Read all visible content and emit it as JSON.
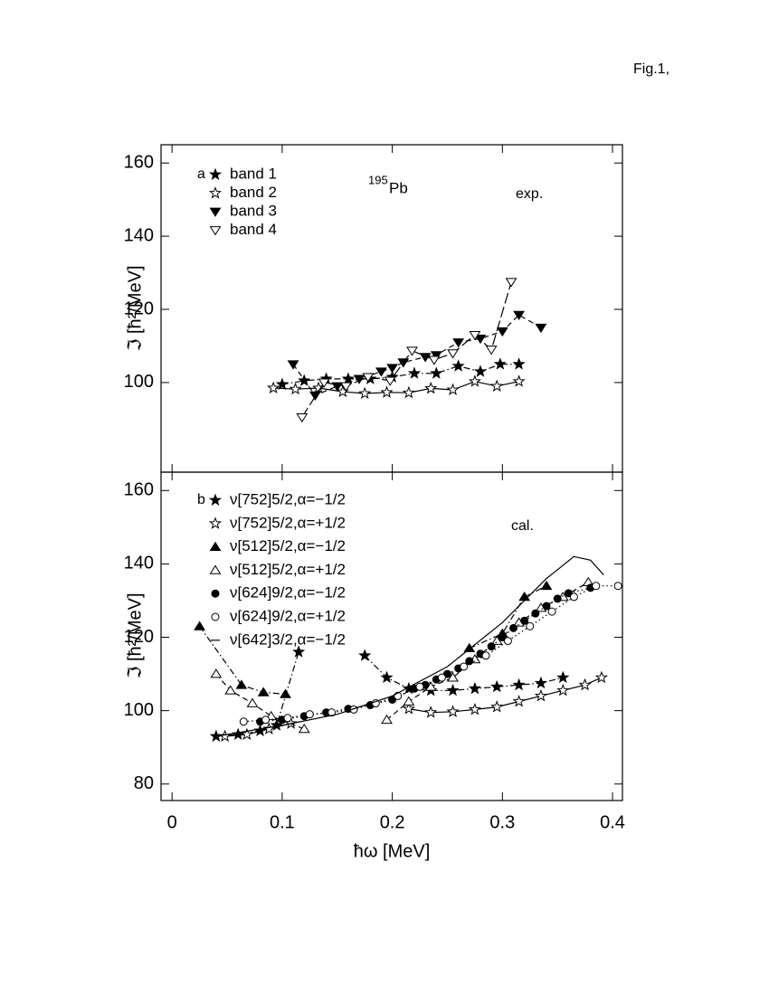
{
  "figure_label": "Fig.1,",
  "chart_data": [
    {
      "type": "line",
      "panel_label": "a",
      "annotation": "exp.",
      "nucleus": {
        "mass": "195",
        "symbol": "Pb"
      },
      "ylabel": "ℑ [ħ²/MeV]",
      "xlim": [
        -0.01,
        0.409
      ],
      "ylim": [
        75.5,
        165
      ],
      "xticks": [
        0,
        0.1,
        0.2,
        0.3,
        0.4
      ],
      "yticks": [
        100,
        120,
        140,
        160
      ],
      "legend": "upper left",
      "series": [
        {
          "name": "band 1",
          "marker": "star-filled",
          "dash": "dashdot",
          "x": [
            0.1,
            0.12,
            0.14,
            0.16,
            0.18,
            0.2,
            0.22,
            0.24,
            0.26,
            0.28,
            0.298,
            0.315
          ],
          "values": [
            99.5,
            100.5,
            101,
            101,
            101,
            101.5,
            102.5,
            102.5,
            104.5,
            103,
            105,
            105
          ]
        },
        {
          "name": "band 2",
          "marker": "star-open",
          "dash": "solid",
          "x": [
            0.092,
            0.112,
            0.133,
            0.155,
            0.175,
            0.195,
            0.215,
            0.235,
            0.255,
            0.275,
            0.295,
            0.315
          ],
          "values": [
            98.5,
            98.2,
            98.5,
            97.5,
            97,
            97.3,
            97.2,
            98.4,
            98,
            100.3,
            99,
            100.3
          ]
        },
        {
          "name": "band 3",
          "marker": "tri-down-filled",
          "dash": "dashed",
          "x": [
            0.11,
            0.13,
            0.15,
            0.17,
            0.19,
            0.2,
            0.21,
            0.23,
            0.24,
            0.26,
            0.28,
            0.3,
            0.315,
            0.335
          ],
          "values": [
            105,
            96.5,
            99,
            101,
            103,
            104,
            105.5,
            107,
            107.5,
            111,
            112,
            114,
            118.5,
            115
          ]
        },
        {
          "name": "band 4",
          "marker": "tri-down-open",
          "dash": "longdash",
          "x": [
            0.118,
            0.138,
            0.158,
            0.178,
            0.198,
            0.218,
            0.238,
            0.255,
            0.275,
            0.29,
            0.308
          ],
          "values": [
            90.5,
            100,
            99,
            101.5,
            100.5,
            108.7,
            106.2,
            108,
            113,
            109,
            127.5
          ]
        }
      ]
    },
    {
      "type": "line",
      "panel_label": "b",
      "annotation": "cal.",
      "ylabel": "ℑ [ħ²/MeV]",
      "xlabel": "ħω [MeV]",
      "xlim": [
        -0.01,
        0.409
      ],
      "ylim": [
        75.5,
        165
      ],
      "xticks": [
        0,
        0.1,
        0.2,
        0.3,
        0.4
      ],
      "yticks": [
        80,
        100,
        120,
        140,
        160
      ],
      "legend": "upper left",
      "series": [
        {
          "name": "ν[752]5/2,α=−1/2",
          "marker": "star-filled",
          "dash": "dashdot",
          "x": [
            0.04,
            0.06,
            0.08,
            0.095,
            0.115,
            null,
            0.175,
            0.195,
            0.215,
            0.235,
            0.255,
            0.275,
            0.295,
            0.315,
            0.335,
            0.355
          ],
          "values": [
            93,
            93.5,
            94.5,
            96,
            116,
            null,
            115,
            109,
            106,
            105.5,
            105.5,
            106,
            106.5,
            107,
            107.5,
            109
          ]
        },
        {
          "name": "ν[752]5/2,α=+1/2",
          "marker": "star-open",
          "dash": "solid",
          "x": [
            0.048,
            0.068,
            0.088,
            0.108,
            null,
            0.215,
            0.235,
            0.255,
            0.275,
            0.295,
            0.315,
            0.335,
            0.355,
            0.375,
            0.39
          ],
          "values": [
            93,
            93.5,
            95,
            96.5,
            null,
            100.5,
            99.5,
            99.7,
            100.3,
            101,
            102.5,
            104,
            105.5,
            107,
            109
          ]
        },
        {
          "name": "ν[512]5/2,α=−1/2",
          "marker": "tri-up-filled",
          "dash": "dashdot",
          "x": [
            0.025,
            0.063,
            0.083,
            0.103,
            null,
            0.27,
            0.3,
            0.32,
            0.34
          ],
          "values": [
            123,
            107,
            105,
            104.5,
            null,
            117,
            121,
            131,
            134
          ]
        },
        {
          "name": "ν[512]5/2,α=+1/2",
          "marker": "tri-up-open",
          "dash": "dashed",
          "x": [
            0.04,
            0.053,
            0.073,
            0.09,
            0.12,
            null,
            0.195,
            0.215,
            0.235,
            0.255,
            0.275,
            0.295,
            0.315,
            0.335,
            0.355,
            0.378
          ],
          "values": [
            110,
            105.5,
            102,
            98.5,
            95,
            null,
            97.5,
            102.5,
            106.5,
            109,
            114,
            119,
            124,
            128,
            131,
            135
          ]
        },
        {
          "name": "ν[624]9/2,α=−1/2",
          "marker": "circle-filled",
          "dash": "dotted",
          "x": [
            0.08,
            0.1,
            0.12,
            0.14,
            0.16,
            0.18,
            0.2,
            0.22,
            0.23,
            0.24,
            0.25,
            0.26,
            0.27,
            0.28,
            0.29,
            0.3,
            0.31,
            0.32,
            0.33,
            0.34,
            0.35,
            0.36,
            0.38
          ],
          "values": [
            97,
            97.5,
            98.5,
            99.5,
            100.5,
            101.5,
            103,
            106,
            107,
            108.5,
            110,
            111.5,
            113.5,
            115.5,
            117.5,
            120,
            122.5,
            124.5,
            126.5,
            128.5,
            130.5,
            132,
            133.5
          ]
        },
        {
          "name": "ν[624]9/2,α=+1/2",
          "marker": "circle-open",
          "dash": "dotted",
          "x": [
            0.065,
            0.085,
            0.105,
            0.125,
            0.145,
            0.165,
            0.185,
            0.205,
            0.225,
            0.245,
            0.265,
            0.285,
            0.305,
            0.325,
            0.345,
            0.365,
            0.385,
            0.405
          ],
          "values": [
            97,
            97.5,
            98,
            99,
            99.5,
            100.3,
            102,
            104,
            106.5,
            109,
            112,
            115,
            119,
            123,
            127,
            131,
            134,
            134
          ]
        },
        {
          "name": "ν[642]3/2,α=−1/2",
          "marker": "none",
          "dash": "solid",
          "x": [
            0.04,
            0.1,
            0.15,
            0.2,
            0.25,
            0.3,
            0.34,
            0.365,
            0.38,
            0.392
          ],
          "values": [
            93,
            96,
            99,
            104,
            112,
            124,
            136,
            142,
            141,
            137
          ]
        }
      ]
    }
  ]
}
